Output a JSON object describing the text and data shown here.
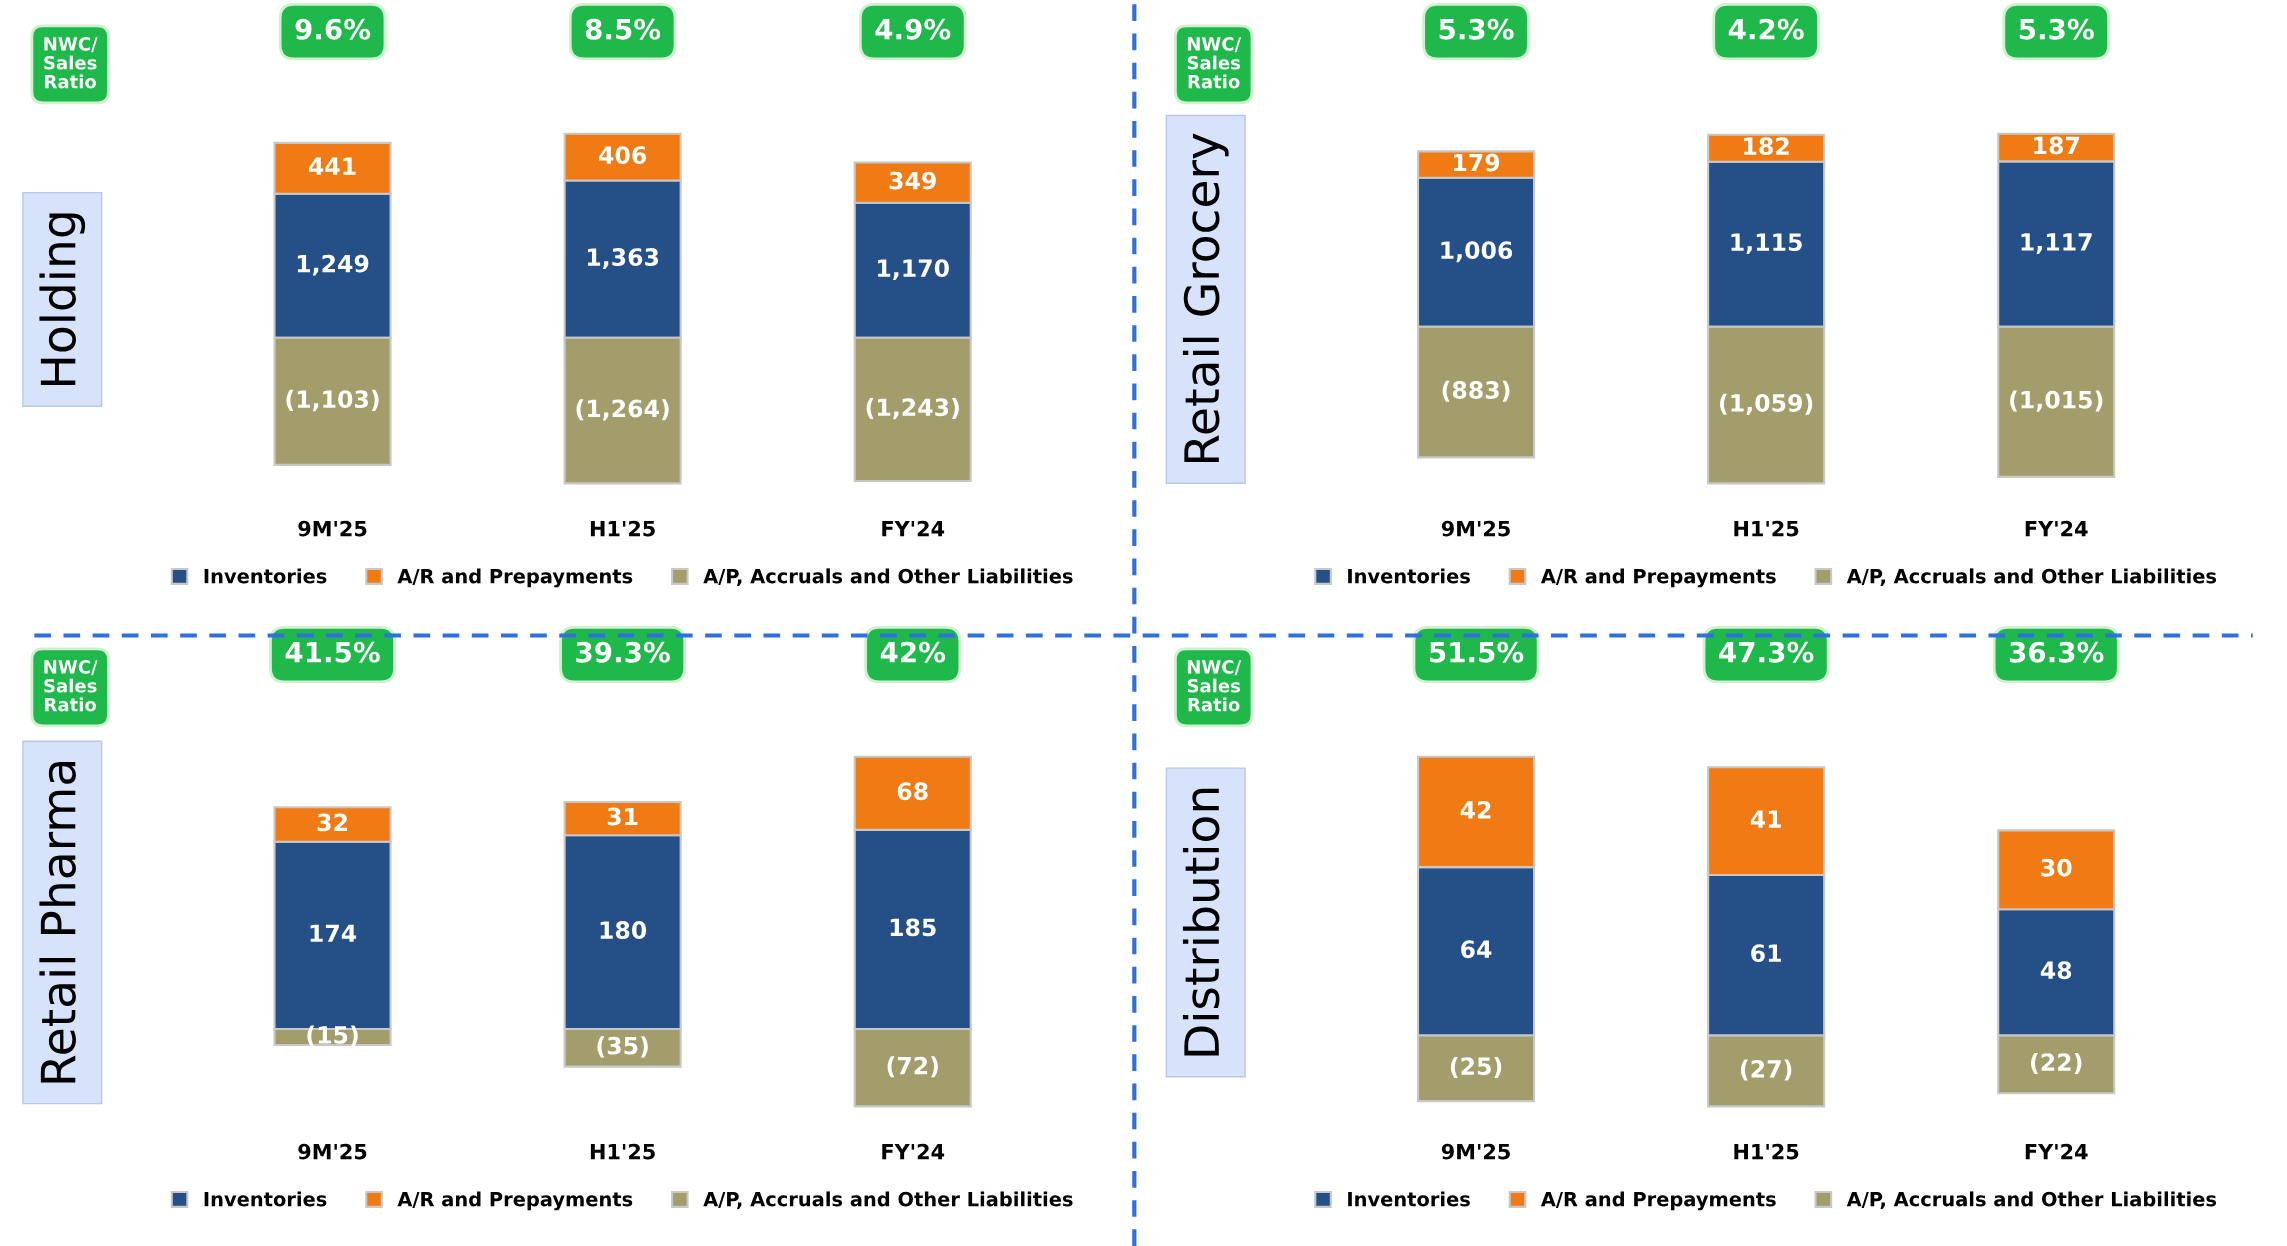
{
  "chart_data": [
    {
      "type": "bar",
      "stacked": true,
      "title": "Holding",
      "categories": [
        "9M'25",
        "H1'25",
        "FY'24"
      ],
      "legend": "bottom",
      "tick_labels": "x",
      "annotations": [
        "NWC/\nSales\nRatio",
        "9.6%",
        "8.5%",
        "4.9%"
      ],
      "series": [
        {
          "name": "Inventories",
          "color": "#254f87",
          "values": [
            1249,
            1363,
            1170
          ],
          "value_labels": [
            "1,249",
            "1,363",
            "1,170"
          ]
        },
        {
          "name": "A/R and Prepayments",
          "color": "#f07b14",
          "values": [
            441,
            406,
            349
          ],
          "value_labels": [
            "441",
            "406",
            "349"
          ]
        },
        {
          "name": "A/P, Accruals and Other Liabilities",
          "color": "#a39d6c",
          "values": [
            -1103,
            -1264,
            -1243
          ],
          "value_labels": [
            "(1,103)",
            "(1,264)",
            "(1,243)"
          ]
        }
      ]
    },
    {
      "type": "bar",
      "stacked": true,
      "title": "Retail Grocery",
      "categories": [
        "9M'25",
        "H1'25",
        "FY'24"
      ],
      "legend": "bottom",
      "tick_labels": "x",
      "annotations": [
        "NWC/\nSales\nRatio",
        "5.3%",
        "4.2%",
        "5.3%"
      ],
      "series": [
        {
          "name": "Inventories",
          "color": "#254f87",
          "values": [
            1006,
            1115,
            1117
          ],
          "value_labels": [
            "1,006",
            "1,115",
            "1,117"
          ]
        },
        {
          "name": "A/R and Prepayments",
          "color": "#f07b14",
          "values": [
            179,
            182,
            187
          ],
          "value_labels": [
            "179",
            "182",
            "187"
          ]
        },
        {
          "name": "A/P, Accruals and Other Liabilities",
          "color": "#a39d6c",
          "values": [
            -883,
            -1059,
            -1015
          ],
          "value_labels": [
            "(883)",
            "(1,059)",
            "(1,015)"
          ]
        }
      ]
    },
    {
      "type": "bar",
      "stacked": true,
      "title": "Retail Pharma",
      "categories": [
        "9M'25",
        "H1'25",
        "FY'24"
      ],
      "legend": "bottom",
      "tick_labels": "x",
      "annotations": [
        "NWC/\nSales\nRatio",
        "41.5%",
        "39.3%",
        "42%"
      ],
      "series": [
        {
          "name": "Inventories",
          "color": "#254f87",
          "values": [
            174,
            180,
            185
          ],
          "value_labels": [
            "174",
            "180",
            "185"
          ]
        },
        {
          "name": "A/R and Prepayments",
          "color": "#f07b14",
          "values": [
            32,
            31,
            68
          ],
          "value_labels": [
            "32",
            "31",
            "68"
          ]
        },
        {
          "name": "A/P, Accruals and Other Liabilities",
          "color": "#a39d6c",
          "values": [
            -15,
            -35,
            -72
          ],
          "value_labels": [
            "(15)",
            "(35)",
            "(72)"
          ]
        }
      ]
    },
    {
      "type": "bar",
      "stacked": true,
      "title": "Distribution",
      "categories": [
        "9M'25",
        "H1'25",
        "FY'24"
      ],
      "legend": "bottom",
      "tick_labels": "x",
      "annotations": [
        "NWC/\nSales\nRatio",
        "51.5%",
        "47.3%",
        "36.3%"
      ],
      "series": [
        {
          "name": "Inventories",
          "color": "#254f87",
          "values": [
            64,
            61,
            48
          ],
          "value_labels": [
            "64",
            "61",
            "48"
          ]
        },
        {
          "name": "A/R and Prepayments",
          "color": "#f07b14",
          "values": [
            42,
            41,
            30
          ],
          "value_labels": [
            "42",
            "41",
            "30"
          ]
        },
        {
          "name": "A/P, Accruals and Other Liabilities",
          "color": "#a39d6c",
          "values": [
            -25,
            -27,
            -22
          ],
          "value_labels": [
            "(25)",
            "(27)",
            "(22)"
          ]
        }
      ]
    }
  ]
}
